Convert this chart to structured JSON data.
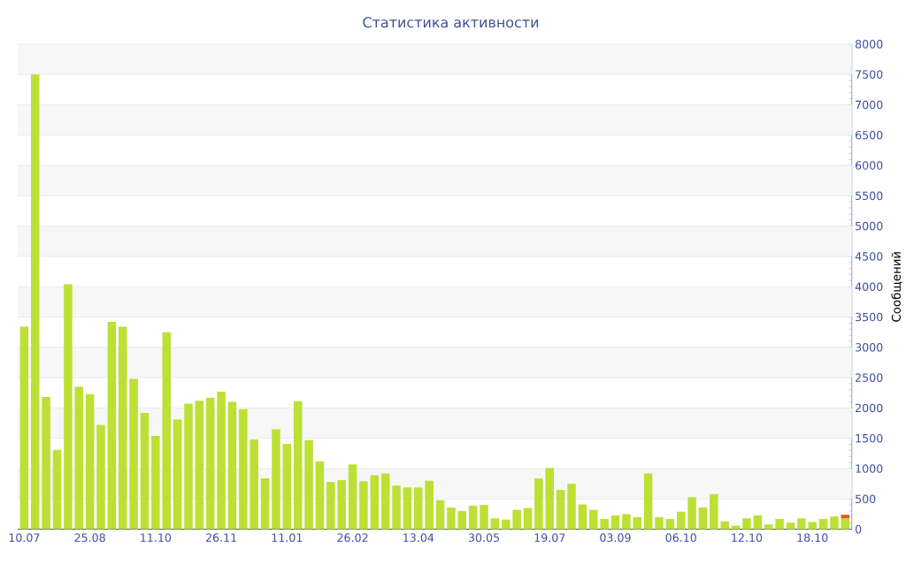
{
  "chart_data": {
    "type": "bar",
    "title": "Статистика активности",
    "ylabel": "Сообщений",
    "categories": [
      "10.07",
      null,
      null,
      null,
      null,
      null,
      "25.08",
      null,
      null,
      null,
      null,
      null,
      "11.10",
      null,
      null,
      null,
      null,
      null,
      "26.11",
      null,
      null,
      null,
      null,
      null,
      "11.01",
      null,
      null,
      null,
      null,
      null,
      "26.02",
      null,
      null,
      null,
      null,
      null,
      "13.04",
      null,
      null,
      null,
      null,
      null,
      "30.05",
      null,
      null,
      null,
      null,
      null,
      "19.07",
      null,
      null,
      null,
      null,
      null,
      "03.09",
      null,
      null,
      null,
      null,
      null,
      "06.10",
      null,
      null,
      null,
      null,
      null,
      "12.10",
      null,
      null,
      null,
      null,
      null,
      "18.10",
      null,
      null,
      null
    ],
    "series": [
      {
        "color": "#bce034",
        "values": [
          3340,
          7500,
          2180,
          1310,
          4040,
          2350,
          2230,
          1720,
          3420,
          3340,
          2480,
          1920,
          1540,
          3250,
          1810,
          2070,
          2120,
          2170,
          2270,
          2100,
          1980,
          1480,
          840,
          1650,
          1410,
          2110,
          1470,
          1120,
          780,
          810,
          1070,
          790,
          890,
          920,
          720,
          690,
          690,
          800,
          480,
          360,
          300,
          390,
          400,
          180,
          160,
          320,
          350,
          840,
          1010,
          650,
          750,
          410,
          320,
          170,
          230,
          250,
          200,
          920,
          200,
          170,
          290,
          530,
          360,
          580,
          130,
          60,
          180,
          230,
          80,
          170,
          110,
          180,
          120,
          170,
          210,
          180
        ]
      },
      {
        "color": "#e5562a",
        "values": [
          null,
          null,
          null,
          null,
          null,
          null,
          null,
          null,
          null,
          null,
          null,
          null,
          null,
          null,
          null,
          null,
          null,
          null,
          null,
          null,
          null,
          null,
          null,
          null,
          null,
          null,
          null,
          null,
          null,
          null,
          null,
          null,
          null,
          null,
          null,
          null,
          null,
          null,
          null,
          null,
          null,
          null,
          null,
          null,
          null,
          null,
          null,
          null,
          null,
          null,
          null,
          null,
          null,
          null,
          null,
          null,
          null,
          null,
          null,
          null,
          null,
          null,
          null,
          null,
          null,
          null,
          null,
          null,
          null,
          null,
          null,
          null,
          null,
          null,
          null,
          60
        ]
      }
    ],
    "stacked": true,
    "ylim": [
      0,
      8000
    ],
    "yticks": [
      0,
      500,
      1000,
      1500,
      2000,
      2500,
      3000,
      3500,
      4000,
      4500,
      5000,
      5500,
      6000,
      6500,
      7000,
      7500,
      8000
    ],
    "grid": "y"
  }
}
